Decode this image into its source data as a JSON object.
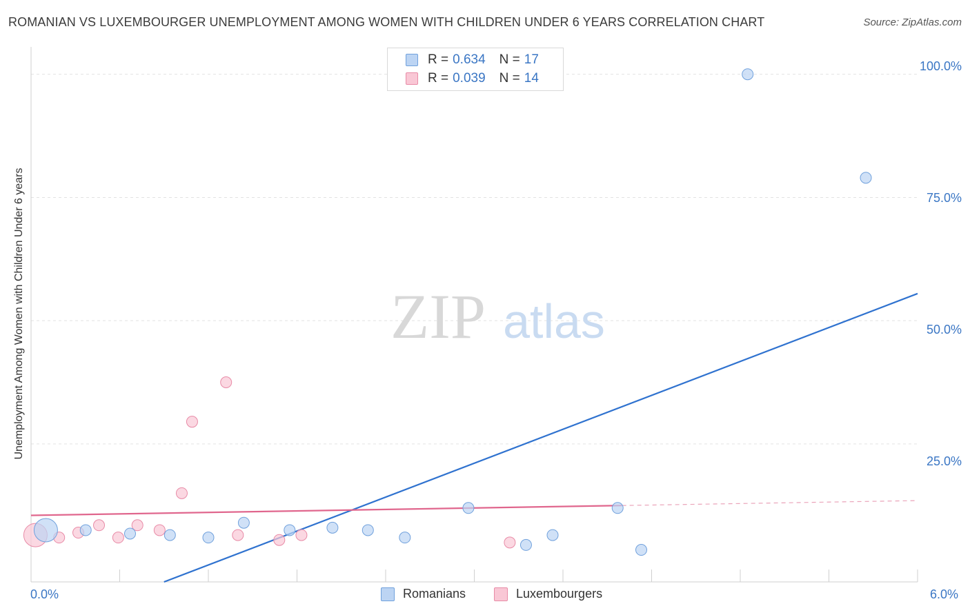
{
  "chart_data": {
    "type": "scatter",
    "title": "ROMANIAN VS LUXEMBOURGER UNEMPLOYMENT AMONG WOMEN WITH CHILDREN UNDER 6 YEARS CORRELATION CHART",
    "source": "Source: ZipAtlas.com",
    "xlabel": "",
    "ylabel": "Unemployment Among Women with Children Under 6 years",
    "xlim": [
      0,
      6
    ],
    "ylim": [
      -3,
      105
    ],
    "x_tick_labels": {
      "min": "0.0%",
      "max": "6.0%"
    },
    "y_ticks": [
      25,
      50,
      75,
      100
    ],
    "y_tick_labels": [
      "25.0%",
      "50.0%",
      "75.0%",
      "100.0%"
    ],
    "watermark": {
      "zip": "ZIP",
      "atlas": "atlas"
    },
    "series": [
      {
        "name": "Romanians",
        "color": "#6fa0dc",
        "fill": "#bcd4f3",
        "R": "0.634",
        "N": "17",
        "points": [
          {
            "x": 0.1,
            "y": 7.5,
            "big": true
          },
          {
            "x": 0.37,
            "y": 7.5
          },
          {
            "x": 0.67,
            "y": 6.8
          },
          {
            "x": 0.94,
            "y": 6.5
          },
          {
            "x": 1.2,
            "y": 6.0
          },
          {
            "x": 1.44,
            "y": 9.0
          },
          {
            "x": 1.75,
            "y": 7.5
          },
          {
            "x": 2.04,
            "y": 8.0
          },
          {
            "x": 2.28,
            "y": 7.5
          },
          {
            "x": 2.53,
            "y": 6.0
          },
          {
            "x": 2.96,
            "y": 12.0
          },
          {
            "x": 3.35,
            "y": 4.5
          },
          {
            "x": 3.53,
            "y": 6.5
          },
          {
            "x": 3.97,
            "y": 12.0
          },
          {
            "x": 4.13,
            "y": 3.5
          },
          {
            "x": 4.85,
            "y": 100.0
          },
          {
            "x": 5.65,
            "y": 79.0
          }
        ],
        "trend": {
          "x0": 0.9,
          "y0": -3.0,
          "x1": 6.0,
          "y1": 55.5
        }
      },
      {
        "name": "Luxembourgers",
        "color": "#e88aa6",
        "fill": "#f9c7d5",
        "R": "0.039",
        "N": "14",
        "points": [
          {
            "x": 0.03,
            "y": 6.5,
            "big": true
          },
          {
            "x": 0.19,
            "y": 6.0
          },
          {
            "x": 0.32,
            "y": 7.0
          },
          {
            "x": 0.46,
            "y": 8.5
          },
          {
            "x": 0.59,
            "y": 6.0
          },
          {
            "x": 0.72,
            "y": 8.5
          },
          {
            "x": 0.87,
            "y": 7.5
          },
          {
            "x": 1.02,
            "y": 15.0
          },
          {
            "x": 1.09,
            "y": 29.5
          },
          {
            "x": 1.32,
            "y": 37.5
          },
          {
            "x": 1.4,
            "y": 6.5
          },
          {
            "x": 1.68,
            "y": 5.5
          },
          {
            "x": 1.83,
            "y": 6.5
          },
          {
            "x": 3.24,
            "y": 5.0
          }
        ],
        "trend": {
          "x0": 0.0,
          "y0": 10.5,
          "x1": 4.0,
          "y1": 12.5,
          "dash_to_x": 6.0,
          "dash_to_y": 13.5
        }
      }
    ]
  },
  "legend": {
    "r_label": "R =",
    "n_label": "N ="
  }
}
